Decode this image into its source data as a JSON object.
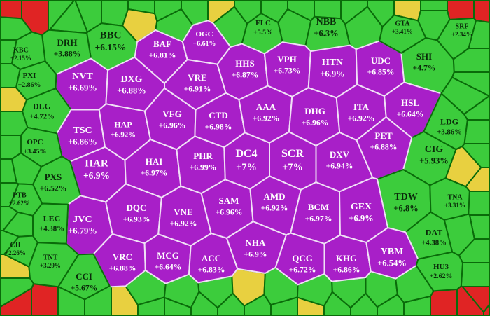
{
  "cells": [
    {
      "ticker": "BBC",
      "change": "+6.15%",
      "color": "#3ccc3c"
    },
    {
      "ticker": "DRH",
      "change": "+3.88%",
      "color": "#3ccc3c"
    },
    {
      "ticker": "NBB",
      "change": "+6.3%",
      "color": "#3ccc3c"
    },
    {
      "ticker": "FLC",
      "change": "+5.5%",
      "color": "#3ccc3c"
    },
    {
      "ticker": "SHI",
      "change": "+4.7%",
      "color": "#3ccc3c"
    },
    {
      "ticker": "NVT",
      "change": "+6.69%",
      "color": "#a81fc8"
    },
    {
      "ticker": "DXG",
      "change": "+6.88%",
      "color": "#a81fc8"
    },
    {
      "ticker": "BAF",
      "change": "+6.81%",
      "color": "#a81fc8"
    },
    {
      "ticker": "OGC",
      "change": "+6.61%",
      "color": "#a81fc8"
    },
    {
      "ticker": "VRE",
      "change": "+6.91%",
      "color": "#a81fc8"
    },
    {
      "ticker": "HHS",
      "change": "+6.87%",
      "color": "#a81fc8"
    },
    {
      "ticker": "VPH",
      "change": "+6.73%",
      "color": "#a81fc8"
    },
    {
      "ticker": "HTN",
      "change": "+6.9%",
      "color": "#a81fc8"
    },
    {
      "ticker": "UDC",
      "change": "+6.85%",
      "color": "#a81fc8"
    },
    {
      "ticker": "PXI",
      "change": "+2.86%",
      "color": "#3ccc3c"
    },
    {
      "ticker": "DLG",
      "change": "+4.72%",
      "color": "#3ccc3c"
    },
    {
      "ticker": "TSC",
      "change": "+6.86%",
      "color": "#a81fc8"
    },
    {
      "ticker": "HAP",
      "change": "+6.92%",
      "color": "#a81fc8"
    },
    {
      "ticker": "VFG",
      "change": "+6.96%",
      "color": "#a81fc8"
    },
    {
      "ticker": "CTD",
      "change": "+6.98%",
      "color": "#a81fc8"
    },
    {
      "ticker": "AAA",
      "change": "+6.92%",
      "color": "#a81fc8"
    },
    {
      "ticker": "DHG",
      "change": "+6.96%",
      "color": "#a81fc8"
    },
    {
      "ticker": "ITA",
      "change": "+6.92%",
      "color": "#a81fc8"
    },
    {
      "ticker": "HSL",
      "change": "+6.64%",
      "color": "#a81fc8"
    },
    {
      "ticker": "LDG",
      "change": "+3.86%",
      "color": "#3ccc3c"
    },
    {
      "ticker": "OPC",
      "change": "+3.45%",
      "color": "#3ccc3c"
    },
    {
      "ticker": "CIG",
      "change": "+5.93%",
      "color": "#3ccc3c"
    },
    {
      "ticker": "HAR",
      "change": "+6.9%",
      "color": "#a81fc8"
    },
    {
      "ticker": "HAI",
      "change": "+6.97%",
      "color": "#a81fc8"
    },
    {
      "ticker": "PHR",
      "change": "+6.99%",
      "color": "#a81fc8"
    },
    {
      "ticker": "DC4",
      "change": "+7%",
      "color": "#a81fc8"
    },
    {
      "ticker": "SCR",
      "change": "+7%",
      "color": "#a81fc8"
    },
    {
      "ticker": "DXV",
      "change": "+6.94%",
      "color": "#a81fc8"
    },
    {
      "ticker": "PET",
      "change": "+6.88%",
      "color": "#a81fc8"
    },
    {
      "ticker": "PXS",
      "change": "+6.52%",
      "color": "#3ccc3c"
    },
    {
      "ticker": "TDW",
      "change": "+6.8%",
      "color": "#3ccc3c"
    },
    {
      "ticker": "JVC",
      "change": "+6.79%",
      "color": "#a81fc8"
    },
    {
      "ticker": "DQC",
      "change": "+6.93%",
      "color": "#a81fc8"
    },
    {
      "ticker": "VNE",
      "change": "+6.92%",
      "color": "#a81fc8"
    },
    {
      "ticker": "SAM",
      "change": "+6.96%",
      "color": "#a81fc8"
    },
    {
      "ticker": "AMD",
      "change": "+6.92%",
      "color": "#a81fc8"
    },
    {
      "ticker": "BCM",
      "change": "+6.97%",
      "color": "#a81fc8"
    },
    {
      "ticker": "GEX",
      "change": "+6.9%",
      "color": "#a81fc8"
    },
    {
      "ticker": "LEC",
      "change": "+4.38%",
      "color": "#3ccc3c"
    },
    {
      "ticker": "DAT",
      "change": "+4.38%",
      "color": "#3ccc3c"
    },
    {
      "ticker": "TNA",
      "change": "+3.31%",
      "color": "#3ccc3c"
    },
    {
      "ticker": "VRC",
      "change": "+6.88%",
      "color": "#a81fc8"
    },
    {
      "ticker": "MCG",
      "change": "+6.64%",
      "color": "#a81fc8"
    },
    {
      "ticker": "ACC",
      "change": "+6.83%",
      "color": "#a81fc8"
    },
    {
      "ticker": "NHA",
      "change": "+6.9%",
      "color": "#a81fc8"
    },
    {
      "ticker": "QCG",
      "change": "+6.72%",
      "color": "#a81fc8"
    },
    {
      "ticker": "KHG",
      "change": "+6.86%",
      "color": "#a81fc8"
    },
    {
      "ticker": "YBM",
      "change": "+6.54%",
      "color": "#a81fc8"
    },
    {
      "ticker": "CCI",
      "change": "+5.67%",
      "color": "#3ccc3c"
    },
    {
      "ticker": "CII",
      "change": "+2.26%",
      "color": "#3ccc3c"
    },
    {
      "ticker": "TNT",
      "change": "+3.29%",
      "color": "#3ccc3c"
    },
    {
      "ticker": "HU3",
      "change": "+2.62%",
      "color": "#3ccc3c"
    },
    {
      "ticker": "GTA",
      "change": "+3.41%",
      "color": "#3ccc3c"
    },
    {
      "ticker": "SRF",
      "change": "+2.34%",
      "color": "#3ccc3c"
    },
    {
      "ticker": "KBC",
      "change": "+2.15%",
      "color": "#3ccc3c"
    },
    {
      "ticker": "PTB",
      "change": "+2.62%",
      "color": "#3ccc3c"
    }
  ]
}
